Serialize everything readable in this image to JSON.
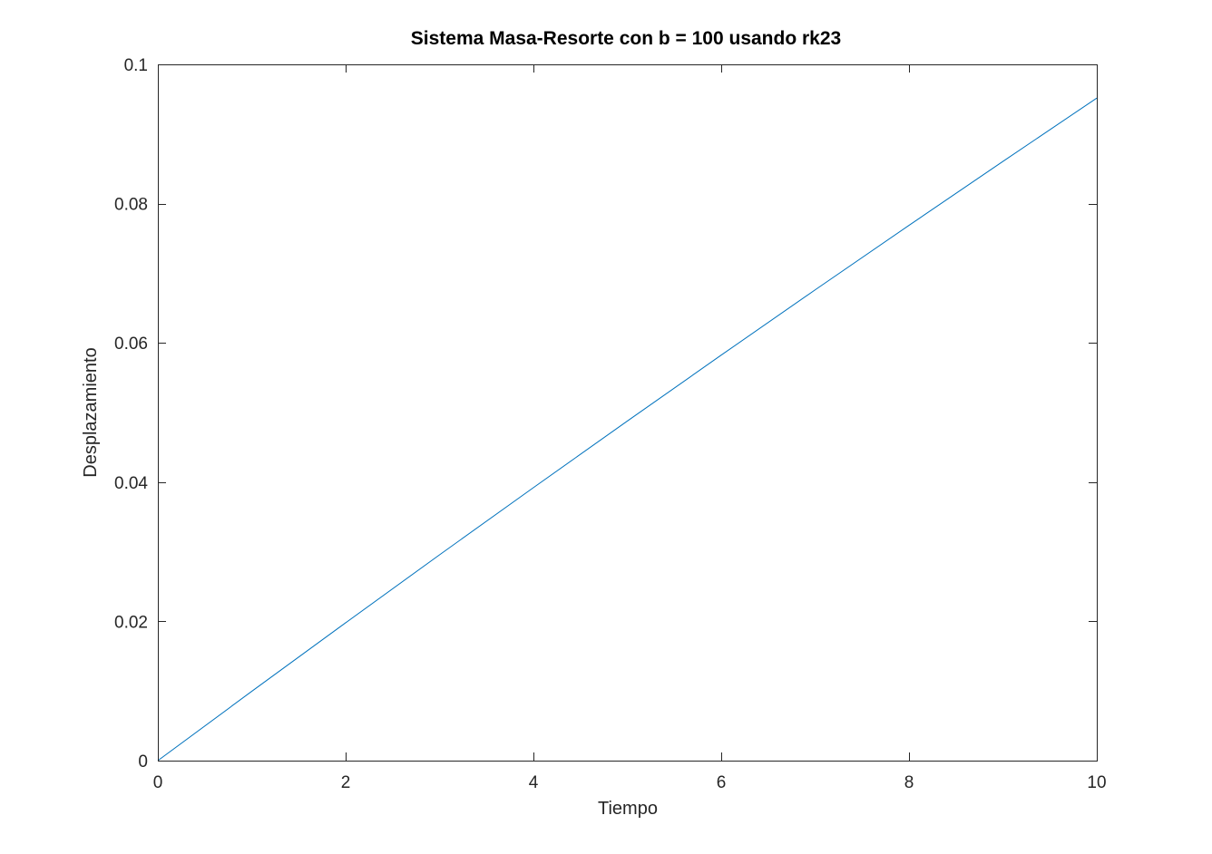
{
  "chart_data": {
    "type": "line",
    "title": "Sistema Masa-Resorte con b = 100 usando rk23",
    "xlabel": "Tiempo",
    "ylabel": "Desplazamiento",
    "xlim": [
      0,
      10
    ],
    "ylim": [
      0,
      0.1
    ],
    "x_ticks": [
      0,
      2,
      4,
      6,
      8,
      10
    ],
    "x_tick_labels": [
      "0",
      "2",
      "4",
      "6",
      "8",
      "10"
    ],
    "y_ticks": [
      0,
      0.02,
      0.04,
      0.06,
      0.08,
      0.1
    ],
    "y_tick_labels": [
      "0",
      "0.02",
      "0.04",
      "0.06",
      "0.08",
      "0.1"
    ],
    "grid": false,
    "box": true,
    "series": [
      {
        "color": "#0072bd",
        "x": [
          0,
          1,
          2,
          3,
          4,
          5,
          6,
          7,
          8,
          9,
          10
        ],
        "y": [
          0,
          0.00995,
          0.0198,
          0.02956,
          0.03921,
          0.04877,
          0.05824,
          0.06761,
          0.07688,
          0.08606,
          0.09516
        ]
      }
    ]
  }
}
